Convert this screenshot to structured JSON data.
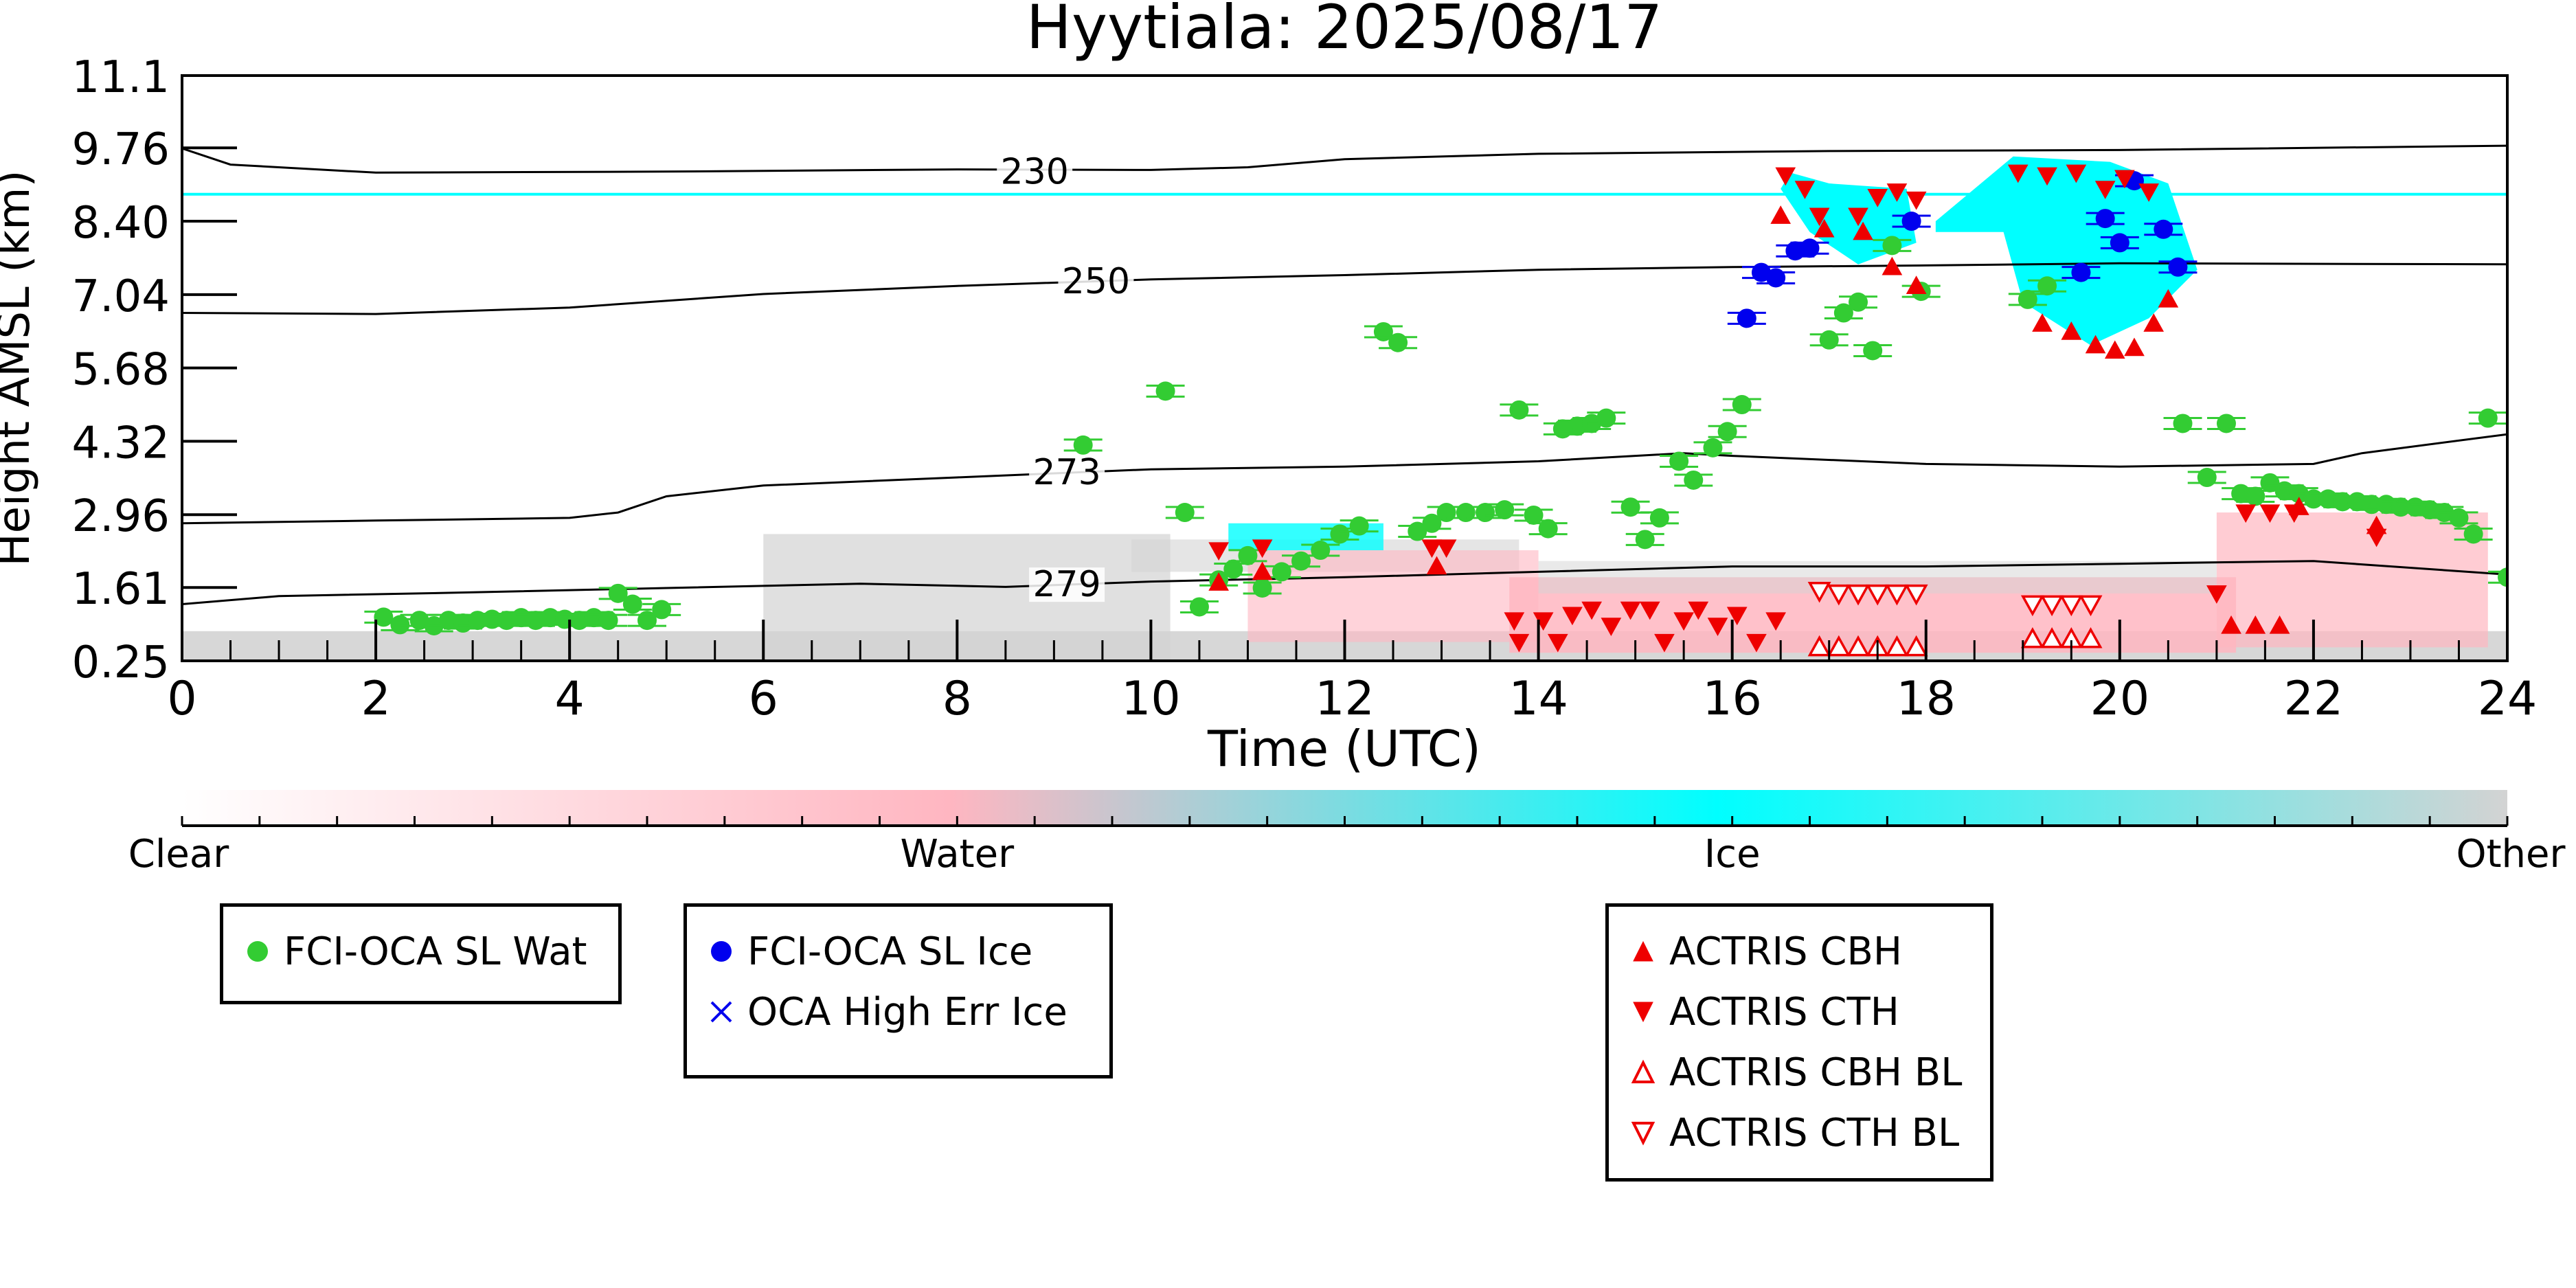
{
  "chart_data": {
    "type": "scatter",
    "title": "Hyytiala: 2025/08/17",
    "xlabel": "Time (UTC)",
    "ylabel": "Height AMSL (km)",
    "xlim": [
      0,
      24
    ],
    "ylim": [
      0.25,
      11.1
    ],
    "x_ticks": [
      "0",
      "2",
      "4",
      "6",
      "8",
      "10",
      "12",
      "14",
      "16",
      "18",
      "20",
      "22",
      "24"
    ],
    "y_ticks": [
      "0.25",
      "1.61",
      "2.96",
      "4.32",
      "5.68",
      "7.04",
      "8.40",
      "9.76",
      "11.1"
    ],
    "colorbar": {
      "labels": [
        "Clear",
        "Water",
        "Ice",
        "Other"
      ],
      "colors": [
        "#ffffff",
        "#ffb6c1",
        "#00ffff",
        "#d3d3d3"
      ]
    },
    "temperature_contours": [
      {
        "label": "230",
        "points": [
          [
            0,
            9.75
          ],
          [
            0.5,
            9.45
          ],
          [
            2,
            9.3
          ],
          [
            5,
            9.32
          ],
          [
            8,
            9.36
          ],
          [
            10,
            9.35
          ],
          [
            11,
            9.4
          ],
          [
            12,
            9.55
          ],
          [
            14,
            9.65
          ],
          [
            17,
            9.7
          ],
          [
            20,
            9.72
          ],
          [
            24,
            9.8
          ]
        ]
      },
      {
        "label": "250",
        "points": [
          [
            0,
            6.7
          ],
          [
            2,
            6.68
          ],
          [
            4,
            6.8
          ],
          [
            6,
            7.05
          ],
          [
            8,
            7.2
          ],
          [
            10,
            7.32
          ],
          [
            12,
            7.4
          ],
          [
            14,
            7.5
          ],
          [
            16,
            7.55
          ],
          [
            18,
            7.58
          ],
          [
            20,
            7.62
          ],
          [
            24,
            7.6
          ]
        ]
      },
      {
        "label": "273",
        "points": [
          [
            0,
            2.8
          ],
          [
            2,
            2.85
          ],
          [
            4,
            2.9
          ],
          [
            4.5,
            3.0
          ],
          [
            5,
            3.3
          ],
          [
            6,
            3.5
          ],
          [
            8,
            3.65
          ],
          [
            10,
            3.8
          ],
          [
            12,
            3.85
          ],
          [
            14,
            3.95
          ],
          [
            15.5,
            4.1
          ],
          [
            16,
            4.05
          ],
          [
            18,
            3.9
          ],
          [
            20,
            3.85
          ],
          [
            22,
            3.9
          ],
          [
            22.5,
            4.1
          ],
          [
            24,
            4.45
          ]
        ]
      },
      {
        "label": "279",
        "points": [
          [
            0,
            1.3
          ],
          [
            1,
            1.45
          ],
          [
            3,
            1.52
          ],
          [
            5,
            1.6
          ],
          [
            7,
            1.68
          ],
          [
            8.5,
            1.62
          ],
          [
            10,
            1.72
          ],
          [
            12,
            1.8
          ],
          [
            14,
            1.9
          ],
          [
            16,
            2.0
          ],
          [
            18,
            2.0
          ],
          [
            20,
            2.05
          ],
          [
            22,
            2.1
          ],
          [
            24,
            1.85
          ]
        ]
      }
    ],
    "series": [
      {
        "name": "FCI-OCA SL Wat",
        "color": "#33cc33",
        "marker": "circle",
        "points": [
          [
            2.08,
            1.06
          ],
          [
            2.25,
            0.92
          ],
          [
            2.45,
            1.0
          ],
          [
            2.6,
            0.9
          ],
          [
            2.75,
            1.0
          ],
          [
            2.9,
            0.95
          ],
          [
            3.05,
            1.0
          ],
          [
            3.2,
            1.02
          ],
          [
            3.35,
            1.0
          ],
          [
            3.5,
            1.05
          ],
          [
            3.65,
            1.0
          ],
          [
            3.8,
            1.05
          ],
          [
            3.95,
            1.02
          ],
          [
            4.1,
            1.0
          ],
          [
            4.25,
            1.05
          ],
          [
            4.4,
            1.0
          ],
          [
            4.5,
            1.5
          ],
          [
            4.65,
            1.3
          ],
          [
            4.8,
            1.0
          ],
          [
            4.95,
            1.2
          ],
          [
            9.3,
            4.25
          ],
          [
            10.15,
            5.25
          ],
          [
            10.35,
            3.0
          ],
          [
            10.5,
            1.25
          ],
          [
            10.7,
            1.75
          ],
          [
            10.85,
            1.95
          ],
          [
            11.0,
            2.2
          ],
          [
            11.15,
            1.6
          ],
          [
            11.35,
            1.9
          ],
          [
            11.55,
            2.1
          ],
          [
            11.75,
            2.3
          ],
          [
            11.95,
            2.6
          ],
          [
            12.15,
            2.75
          ],
          [
            12.4,
            6.35
          ],
          [
            12.55,
            6.15
          ],
          [
            12.75,
            2.65
          ],
          [
            12.9,
            2.8
          ],
          [
            13.05,
            3.0
          ],
          [
            13.25,
            3.0
          ],
          [
            13.45,
            3.0
          ],
          [
            13.65,
            3.05
          ],
          [
            13.8,
            4.9
          ],
          [
            13.95,
            2.95
          ],
          [
            14.1,
            2.7
          ],
          [
            14.25,
            4.55
          ],
          [
            14.4,
            4.6
          ],
          [
            14.55,
            4.65
          ],
          [
            14.7,
            4.75
          ],
          [
            14.95,
            3.1
          ],
          [
            15.1,
            2.5
          ],
          [
            15.25,
            2.9
          ],
          [
            15.45,
            3.95
          ],
          [
            15.6,
            3.6
          ],
          [
            15.8,
            4.2
          ],
          [
            15.95,
            4.5
          ],
          [
            16.1,
            5.0
          ],
          [
            17.0,
            6.2
          ],
          [
            17.15,
            6.7
          ],
          [
            17.3,
            6.9
          ],
          [
            17.45,
            6.0
          ],
          [
            17.65,
            7.95
          ],
          [
            17.95,
            7.1
          ],
          [
            19.05,
            6.95
          ],
          [
            19.25,
            7.2
          ],
          [
            20.65,
            4.65
          ],
          [
            20.9,
            3.65
          ],
          [
            21.1,
            4.65
          ],
          [
            21.25,
            3.35
          ],
          [
            21.4,
            3.3
          ],
          [
            21.55,
            3.55
          ],
          [
            21.7,
            3.4
          ],
          [
            21.85,
            3.35
          ],
          [
            22.0,
            3.25
          ],
          [
            22.15,
            3.25
          ],
          [
            22.3,
            3.2
          ],
          [
            22.45,
            3.2
          ],
          [
            22.6,
            3.15
          ],
          [
            22.75,
            3.15
          ],
          [
            22.9,
            3.1
          ],
          [
            23.05,
            3.1
          ],
          [
            23.2,
            3.05
          ],
          [
            23.35,
            3.0
          ],
          [
            23.5,
            2.9
          ],
          [
            23.65,
            2.6
          ],
          [
            23.8,
            4.75
          ],
          [
            24.0,
            1.8
          ]
        ]
      },
      {
        "name": "FCI-OCA SL Ice",
        "color": "#0000ee",
        "marker": "circle",
        "points": [
          [
            16.15,
            6.6
          ],
          [
            16.3,
            7.45
          ],
          [
            16.45,
            7.35
          ],
          [
            16.65,
            7.85
          ],
          [
            16.8,
            7.9
          ],
          [
            17.85,
            8.4
          ],
          [
            19.6,
            7.45
          ],
          [
            19.85,
            8.45
          ],
          [
            20.0,
            8.0
          ],
          [
            20.15,
            9.15
          ],
          [
            20.45,
            8.25
          ],
          [
            20.6,
            7.55
          ]
        ]
      },
      {
        "name": "OCA High Err Ice",
        "color": "#0000ee",
        "marker": "x",
        "points": []
      },
      {
        "name": "ACTRIS CBH",
        "color": "#ee0000",
        "marker": "triangle-up",
        "points": [
          [
            10.7,
            1.7
          ],
          [
            11.15,
            1.9
          ],
          [
            12.95,
            2.0
          ],
          [
            16.5,
            8.5
          ],
          [
            16.95,
            8.25
          ],
          [
            17.35,
            8.2
          ],
          [
            17.65,
            7.55
          ],
          [
            17.9,
            7.2
          ],
          [
            19.2,
            6.5
          ],
          [
            19.5,
            6.35
          ],
          [
            19.75,
            6.1
          ],
          [
            19.95,
            6.0
          ],
          [
            20.15,
            6.05
          ],
          [
            20.35,
            6.5
          ],
          [
            20.5,
            6.95
          ],
          [
            21.15,
            0.9
          ],
          [
            21.4,
            0.9
          ],
          [
            21.65,
            0.9
          ],
          [
            21.85,
            3.1
          ],
          [
            22.65,
            2.75
          ]
        ]
      },
      {
        "name": "ACTRIS CTH",
        "color": "#ee0000",
        "marker": "triangle-down",
        "points": [
          [
            10.7,
            2.3
          ],
          [
            11.15,
            2.35
          ],
          [
            12.9,
            2.35
          ],
          [
            13.05,
            2.35
          ],
          [
            13.75,
            1.0
          ],
          [
            13.8,
            0.6
          ],
          [
            14.05,
            1.0
          ],
          [
            14.2,
            0.6
          ],
          [
            14.35,
            1.1
          ],
          [
            14.55,
            1.2
          ],
          [
            14.75,
            0.9
          ],
          [
            14.95,
            1.2
          ],
          [
            15.15,
            1.2
          ],
          [
            15.3,
            0.6
          ],
          [
            15.5,
            1.0
          ],
          [
            15.65,
            1.2
          ],
          [
            15.85,
            0.9
          ],
          [
            16.05,
            1.1
          ],
          [
            16.25,
            0.6
          ],
          [
            16.45,
            1.0
          ],
          [
            16.55,
            9.25
          ],
          [
            16.75,
            9.0
          ],
          [
            16.9,
            8.5
          ],
          [
            17.3,
            8.5
          ],
          [
            17.5,
            8.85
          ],
          [
            17.7,
            8.95
          ],
          [
            17.9,
            8.8
          ],
          [
            18.95,
            9.3
          ],
          [
            19.25,
            9.25
          ],
          [
            19.55,
            9.3
          ],
          [
            19.85,
            9.0
          ],
          [
            20.05,
            9.2
          ],
          [
            20.3,
            8.95
          ],
          [
            21.0,
            1.5
          ],
          [
            21.3,
            3.0
          ],
          [
            21.55,
            3.0
          ],
          [
            21.8,
            3.0
          ],
          [
            22.65,
            2.55
          ]
        ]
      },
      {
        "name": "ACTRIS CBH BL",
        "color": "#ee0000",
        "marker": "triangle-up-open",
        "points": [
          [
            16.9,
            0.5
          ],
          [
            17.1,
            0.5
          ],
          [
            17.3,
            0.5
          ],
          [
            17.5,
            0.5
          ],
          [
            17.7,
            0.5
          ],
          [
            17.9,
            0.5
          ],
          [
            19.1,
            0.65
          ],
          [
            19.3,
            0.65
          ],
          [
            19.5,
            0.65
          ],
          [
            19.7,
            0.65
          ]
        ]
      },
      {
        "name": "ACTRIS CTH BL",
        "color": "#ee0000",
        "marker": "triangle-down-open",
        "points": [
          [
            16.9,
            1.55
          ],
          [
            17.1,
            1.5
          ],
          [
            17.3,
            1.5
          ],
          [
            17.5,
            1.5
          ],
          [
            17.7,
            1.5
          ],
          [
            17.9,
            1.5
          ],
          [
            19.1,
            1.3
          ],
          [
            19.3,
            1.3
          ],
          [
            19.5,
            1.3
          ],
          [
            19.7,
            1.3
          ]
        ]
      }
    ]
  },
  "legends": [
    {
      "items": [
        {
          "label": "FCI-OCA SL Wat",
          "marker": "circle",
          "color": "#33cc33"
        }
      ]
    },
    {
      "items": [
        {
          "label": "FCI-OCA SL Ice",
          "marker": "circle",
          "color": "#0000ee"
        },
        {
          "label": "OCA High Err Ice",
          "marker": "x",
          "color": "#0000ee"
        }
      ]
    },
    {
      "items": [
        {
          "label": "ACTRIS CBH",
          "marker": "triangle-up",
          "color": "#ee0000"
        },
        {
          "label": "ACTRIS CTH",
          "marker": "triangle-down",
          "color": "#ee0000"
        },
        {
          "label": "ACTRIS CBH BL",
          "marker": "triangle-up-open",
          "color": "#ee0000"
        },
        {
          "label": "ACTRIS CTH BL",
          "marker": "triangle-down-open",
          "color": "#ee0000"
        }
      ]
    }
  ]
}
